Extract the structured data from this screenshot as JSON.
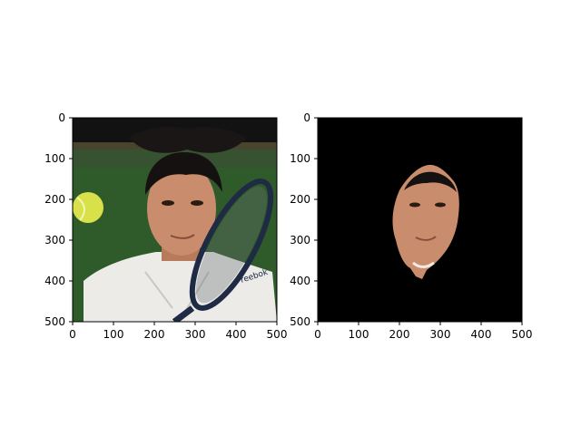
{
  "chart_data": [
    {
      "type": "image",
      "title": "",
      "xlabel": "",
      "ylabel": "",
      "xlim": [
        0,
        500
      ],
      "ylim": [
        500,
        0
      ],
      "xticks": [
        0,
        100,
        200,
        300,
        400,
        500
      ],
      "yticks": [
        0,
        100,
        200,
        300,
        400,
        500
      ],
      "image_content": "photo of tennis player's face with racket and ball; dark hair; white shirt",
      "colors": {
        "court": "#2f5a2a",
        "top_band": "#121212",
        "shirt": "#ecebe8",
        "skin": "#c98c6c",
        "hair": "#151110",
        "ball": "#d8e04a"
      }
    },
    {
      "type": "image",
      "title": "",
      "xlabel": "",
      "ylabel": "",
      "xlim": [
        0,
        500
      ],
      "ylim": [
        500,
        0
      ],
      "xticks": [
        0,
        100,
        200,
        300,
        400,
        500
      ],
      "yticks": [
        0,
        100,
        200,
        300,
        400,
        500
      ],
      "image_content": "segmented face region on black background",
      "colors": {
        "background": "#000000",
        "skin": "#c98c6c",
        "hair": "#151110"
      }
    }
  ]
}
